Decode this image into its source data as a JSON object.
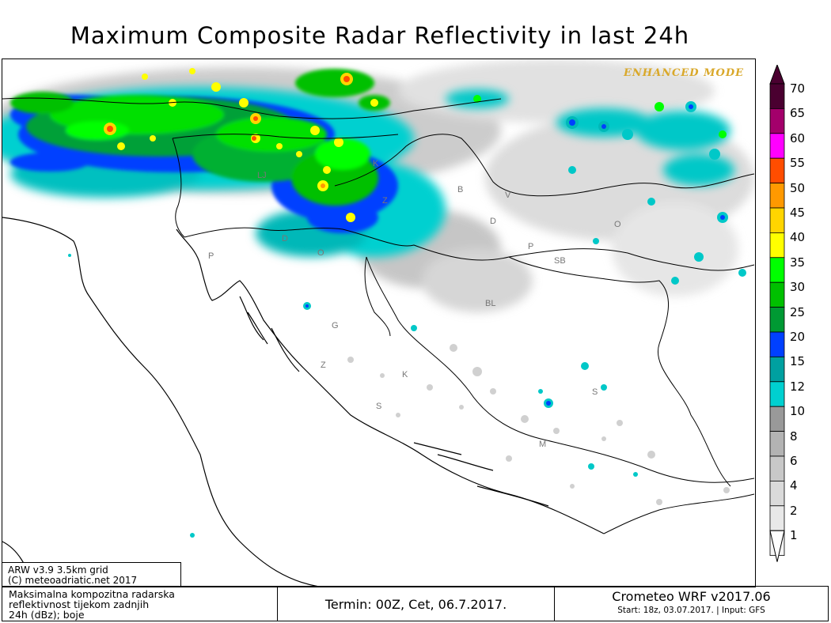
{
  "title": "Maximum Composite Radar Reflectivity in last 24h",
  "badge": "ENHANCED MODE",
  "model_info": [
    "ARW v3.9 3.5km grid",
    "(C) meteoadriatic.net 2017"
  ],
  "footer": {
    "description": [
      "Maksimalna kompozitna radarska",
      "reflektivnost tijekom zadnjih",
      "24h (dBz); boje"
    ],
    "termin": "Termin: 00Z, Cet, 06.7.2017.",
    "product": "Crometeo WRF v2017.06",
    "start": "Start: 18z, 03.07.2017. | Input: GFS"
  },
  "legend": {
    "unit": "dBZ",
    "labels": [
      "70",
      "65",
      "60",
      "55",
      "50",
      "45",
      "40",
      "35",
      "30",
      "25",
      "20",
      "15",
      "12",
      "10",
      "8",
      "6",
      "4",
      "2",
      "1"
    ],
    "colors": [
      "#4a0030",
      "#a3006b",
      "#ff00ff",
      "#ff4d00",
      "#ff9900",
      "#ffd500",
      "#ffff00",
      "#00ff00",
      "#00c000",
      "#009933",
      "#0040ff",
      "#00a0a0",
      "#00d0d0",
      "#999999",
      "#b3b3b3",
      "#c8c8c8",
      "#dadada",
      "#e8e8e8",
      "#f5f5f5"
    ]
  },
  "city_labels": [
    "LJ",
    "K",
    "Z",
    "B",
    "V",
    "O",
    "D",
    "P",
    "SB",
    "BL",
    "P",
    "D",
    "O",
    "G",
    "Z",
    "K",
    "S",
    "S",
    "M"
  ]
}
